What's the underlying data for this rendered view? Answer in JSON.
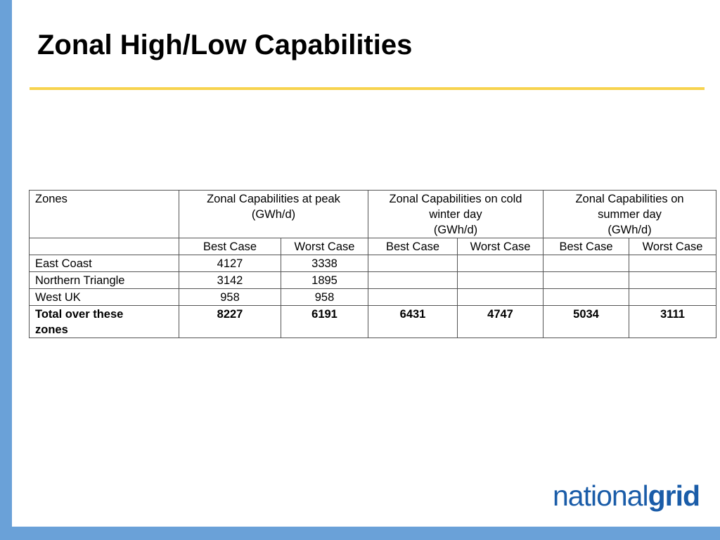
{
  "slide": {
    "title": "Zonal High/Low Capabilities"
  },
  "table": {
    "header": {
      "zones": "Zones",
      "peak": {
        "line1": "Zonal Capabilities at peak",
        "line2": "(GWh/d)"
      },
      "winter": {
        "line1": "Zonal Capabilities on cold",
        "line2": "winter day",
        "line3": "(GWh/d)"
      },
      "summer": {
        "line1": "Zonal Capabilities on",
        "line2": "summer day",
        "line3": "(GWh/d)"
      }
    },
    "subheader": {
      "best": "Best Case",
      "worst": "Worst Case"
    },
    "rows": [
      {
        "zone": "East Coast",
        "peak_best": "4127",
        "peak_worst": "3338",
        "winter_best": "",
        "winter_worst": "",
        "summer_best": "",
        "summer_worst": ""
      },
      {
        "zone": "Northern Triangle",
        "peak_best": "3142",
        "peak_worst": "1895",
        "winter_best": "",
        "winter_worst": "",
        "summer_best": "",
        "summer_worst": ""
      },
      {
        "zone": "West UK",
        "peak_best": "958",
        "peak_worst": "958",
        "winter_best": "",
        "winter_worst": "",
        "summer_best": "",
        "summer_worst": ""
      }
    ],
    "total": {
      "label_line1": "Total over these",
      "label_line2": "zones",
      "peak_best": "8227",
      "peak_worst": "6191",
      "winter_best": "6431",
      "winter_worst": "4747",
      "summer_best": "5034",
      "summer_worst": "3111"
    }
  },
  "logo": {
    "light": "national",
    "bold": "grid"
  },
  "colors": {
    "frame_blue": "#6aa1d8",
    "rule_yellow": "#f7d34f",
    "logo_blue": "#1a5ca8"
  }
}
